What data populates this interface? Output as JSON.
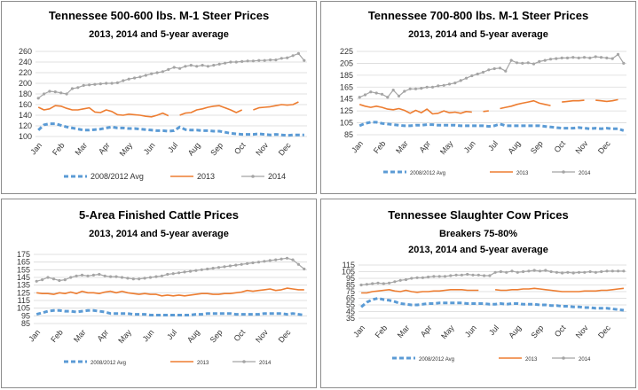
{
  "colors": {
    "avg": "#5b9bd5",
    "y2013": "#ed7d31",
    "y2014": "#a5a5a5",
    "grid": "#d9d9d9"
  },
  "months": [
    "Jan",
    "Feb",
    "Mar",
    "Apr",
    "May",
    "Jun",
    "Jul",
    "Aug",
    "Sep",
    "Oct",
    "Nov",
    "Dec"
  ],
  "chart_data": [
    {
      "type": "line",
      "title": "Tennessee 500-600 lbs. M-1 Steer Prices",
      "subtitle": "2013, 2014 and 5-year average",
      "ylim": [
        100,
        260
      ],
      "yticks": [
        100,
        120,
        140,
        160,
        180,
        200,
        220,
        240,
        260
      ],
      "legend": [
        "2008/2012 Avg",
        "2013",
        "2014"
      ],
      "legend_position": "bottom",
      "grid": true,
      "series": [
        {
          "name": "2008/2012 Avg",
          "style": "avg",
          "values": [
            112,
            122,
            124,
            124,
            121,
            118,
            116,
            114,
            112,
            112,
            113,
            114,
            116,
            118,
            116,
            116,
            115,
            115,
            114,
            113,
            112,
            111,
            111,
            110,
            111,
            118,
            113,
            112,
            112,
            111,
            111,
            110,
            110,
            108,
            106,
            105,
            104,
            104,
            104,
            105,
            104,
            103,
            104,
            103,
            102,
            103,
            103,
            103
          ]
        },
        {
          "name": "2013",
          "style": "y2013",
          "values": [
            155,
            150,
            152,
            158,
            157,
            153,
            150,
            150,
            152,
            154,
            146,
            145,
            150,
            147,
            141,
            140,
            142,
            141,
            140,
            138,
            137,
            140,
            144,
            139,
            null,
            140,
            144,
            145,
            150,
            152,
            155,
            157,
            158,
            154,
            150,
            145,
            150,
            null,
            150,
            154,
            155,
            156,
            158,
            160,
            159,
            160,
            165,
            null
          ]
        },
        {
          "name": "2014",
          "style": "y2014",
          "values": [
            172,
            180,
            185,
            184,
            182,
            180,
            190,
            192,
            196,
            197,
            198,
            199,
            200,
            200,
            201,
            205,
            208,
            210,
            212,
            215,
            218,
            220,
            222,
            226,
            230,
            228,
            232,
            234,
            232,
            234,
            232,
            234,
            236,
            238,
            240,
            240,
            241,
            242,
            242,
            243,
            243,
            244,
            244,
            247,
            248,
            252,
            256,
            243
          ]
        }
      ]
    },
    {
      "type": "line",
      "title": "Tennessee 700-800 lbs. M-1 Steer Prices",
      "subtitle": "2013, 2014 and 5-year average",
      "ylim": [
        85,
        225
      ],
      "yticks": [
        85,
        105,
        125,
        145,
        165,
        185,
        205,
        225
      ],
      "legend": [
        "2008/2012 Avg",
        "2013",
        "2014"
      ],
      "legend_position": "bottom",
      "grid": true,
      "series": [
        {
          "name": "2008/2012 Avg",
          "style": "avg",
          "values": [
            100,
            104,
            106,
            106,
            104,
            103,
            102,
            101,
            100,
            100,
            101,
            101,
            102,
            102,
            101,
            101,
            101,
            101,
            100,
            100,
            100,
            100,
            100,
            99,
            100,
            103,
            100,
            100,
            100,
            100,
            100,
            100,
            100,
            99,
            98,
            97,
            96,
            96,
            96,
            97,
            96,
            95,
            96,
            95,
            96,
            95,
            95,
            92
          ]
        },
        {
          "name": "2013",
          "style": "y2013",
          "values": [
            136,
            133,
            131,
            133,
            131,
            128,
            127,
            129,
            126,
            121,
            126,
            122,
            128,
            120,
            121,
            125,
            122,
            123,
            121,
            124,
            123,
            null,
            124,
            125,
            null,
            129,
            131,
            133,
            136,
            138,
            140,
            142,
            138,
            136,
            134,
            null,
            140,
            141,
            142,
            142,
            143,
            null,
            143,
            142,
            141,
            142,
            144,
            null
          ]
        },
        {
          "name": "2014",
          "style": "y2014",
          "values": [
            148,
            152,
            157,
            155,
            153,
            148,
            160,
            150,
            158,
            162,
            162,
            163,
            165,
            165,
            167,
            168,
            170,
            172,
            176,
            180,
            184,
            187,
            190,
            194,
            196,
            197,
            192,
            210,
            206,
            205,
            206,
            204,
            208,
            210,
            212,
            213,
            214,
            214,
            215,
            214,
            215,
            214,
            216,
            215,
            214,
            213,
            220,
            205
          ]
        }
      ]
    },
    {
      "type": "line",
      "title": "5-Area Finished Cattle Prices",
      "subtitle": "2013, 2014 and 5-year average",
      "ylim": [
        85,
        175
      ],
      "yticks": [
        85,
        95,
        105,
        115,
        125,
        135,
        145,
        155,
        165,
        175
      ],
      "legend": [
        "2008/2012 Avg",
        "2013",
        "2014"
      ],
      "legend_position": "bottom",
      "grid": true,
      "series": [
        {
          "name": "2008/2012 Avg",
          "style": "avg",
          "values": [
            97,
            99,
            101,
            102,
            102,
            101,
            101,
            100,
            101,
            102,
            102,
            101,
            100,
            98,
            98,
            98,
            98,
            97,
            97,
            97,
            96,
            96,
            96,
            96,
            96,
            96,
            96,
            96,
            97,
            97,
            98,
            98,
            98,
            98,
            98,
            97,
            97,
            97,
            97,
            97,
            98,
            98,
            98,
            98,
            97,
            98,
            97,
            96
          ]
        },
        {
          "name": "2013",
          "style": "y2013",
          "values": [
            125,
            124,
            124,
            123,
            125,
            124,
            126,
            124,
            127,
            125,
            125,
            124,
            126,
            127,
            125,
            127,
            125,
            124,
            123,
            124,
            123,
            123,
            121,
            122,
            121,
            122,
            121,
            122,
            123,
            124,
            124,
            123,
            123,
            124,
            124,
            125,
            126,
            128,
            127,
            128,
            129,
            130,
            128,
            129,
            131,
            130,
            129,
            129
          ]
        },
        {
          "name": "2014",
          "style": "y2014",
          "values": [
            140,
            142,
            145,
            143,
            141,
            142,
            145,
            147,
            148,
            147,
            148,
            149,
            147,
            146,
            146,
            145,
            144,
            143,
            143,
            144,
            145,
            146,
            147,
            149,
            150,
            151,
            152,
            153,
            154,
            155,
            156,
            157,
            158,
            159,
            160,
            161,
            162,
            163,
            164,
            165,
            166,
            167,
            168,
            169,
            170,
            168,
            162,
            156
          ]
        }
      ]
    },
    {
      "type": "line",
      "title": "Tennessee Slaughter Cow Prices",
      "subtitle": "Breakers 75-80%",
      "subtitle2": "2013, 2014 and 5-year average",
      "ylim": [
        35,
        115
      ],
      "yticks": [
        35,
        45,
        55,
        65,
        75,
        85,
        95,
        105,
        115
      ],
      "legend": [
        "2008/2012 Avg",
        "2013",
        "2014"
      ],
      "legend_position": "bottom",
      "grid": true,
      "series": [
        {
          "name": "2008/2012 Avg",
          "style": "avg",
          "values": [
            52,
            59,
            63,
            65,
            63,
            62,
            60,
            57,
            56,
            55,
            55,
            56,
            57,
            57,
            58,
            58,
            58,
            58,
            58,
            57,
            57,
            57,
            57,
            56,
            56,
            57,
            56,
            57,
            57,
            56,
            56,
            56,
            55,
            55,
            54,
            54,
            53,
            53,
            52,
            52,
            51,
            51,
            50,
            50,
            50,
            49,
            48,
            47
          ]
        },
        {
          "name": "2013",
          "style": "y2013",
          "values": [
            73,
            73,
            75,
            76,
            77,
            78,
            76,
            75,
            77,
            75,
            74,
            75,
            75,
            76,
            76,
            77,
            78,
            78,
            78,
            77,
            77,
            77,
            null,
            null,
            78,
            77,
            77,
            78,
            78,
            79,
            79,
            80,
            79,
            78,
            77,
            76,
            75,
            75,
            75,
            75,
            76,
            76,
            76,
            77,
            77,
            78,
            79,
            80
          ]
        },
        {
          "name": "2014",
          "style": "y2014",
          "values": [
            85,
            86,
            87,
            88,
            87,
            88,
            90,
            92,
            93,
            95,
            96,
            96,
            97,
            98,
            98,
            98,
            99,
            100,
            100,
            101,
            100,
            100,
            99,
            99,
            104,
            105,
            104,
            106,
            104,
            105,
            106,
            107,
            106,
            107,
            105,
            104,
            103,
            104,
            103,
            104,
            104,
            105,
            104,
            105,
            106,
            106,
            106,
            106
          ]
        }
      ]
    }
  ]
}
